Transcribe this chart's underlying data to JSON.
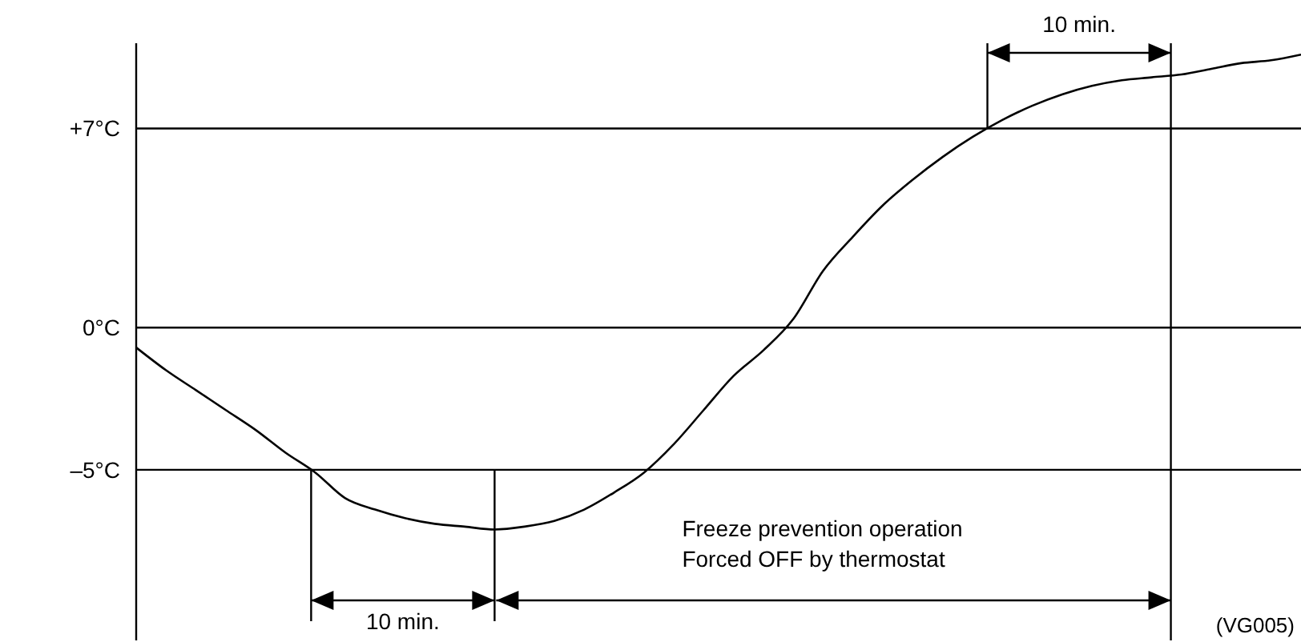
{
  "chart_data": {
    "type": "line",
    "categories": [
      null,
      null,
      null,
      null,
      null,
      null,
      null,
      null,
      null,
      null,
      null,
      null,
      null,
      null,
      null,
      null,
      null,
      null,
      null,
      null,
      null,
      null,
      null,
      null,
      null,
      null,
      null,
      null,
      null,
      null,
      null,
      null,
      null,
      null,
      null,
      null,
      null,
      null,
      null,
      null
    ],
    "series": [
      {
        "color": "#000000",
        "values": [
          -0.7,
          -1.5,
          -2.2,
          -2.9,
          -3.6,
          -4.4,
          -5.1,
          -6.0,
          -6.4,
          -6.7,
          -6.9,
          -7.0,
          -7.1,
          -7.0,
          -6.8,
          -6.4,
          -5.8,
          -5.1,
          -4.1,
          -2.9,
          -1.7,
          -0.8,
          0.3,
          2.0,
          3.2,
          4.3,
          5.2,
          6.0,
          6.7,
          7.3,
          7.8,
          8.2,
          8.5,
          8.7,
          8.8,
          8.9,
          9.1,
          9.3,
          9.4,
          9.6
        ]
      }
    ],
    "ylim": [
      -11,
      10
    ],
    "yticks": [
      {
        "value": 7,
        "label": "+7°C"
      },
      {
        "value": 0,
        "label": "0°C"
      },
      {
        "value": -5,
        "label": "–5°C"
      }
    ],
    "grid": "y",
    "marker": "none",
    "line_style": "solid",
    "tick_labels": "y",
    "annotations": [
      "10 min.",
      "10 min.",
      "Freeze prevention operation",
      "Forced OFF by thermostat",
      "(VG005)"
    ]
  }
}
